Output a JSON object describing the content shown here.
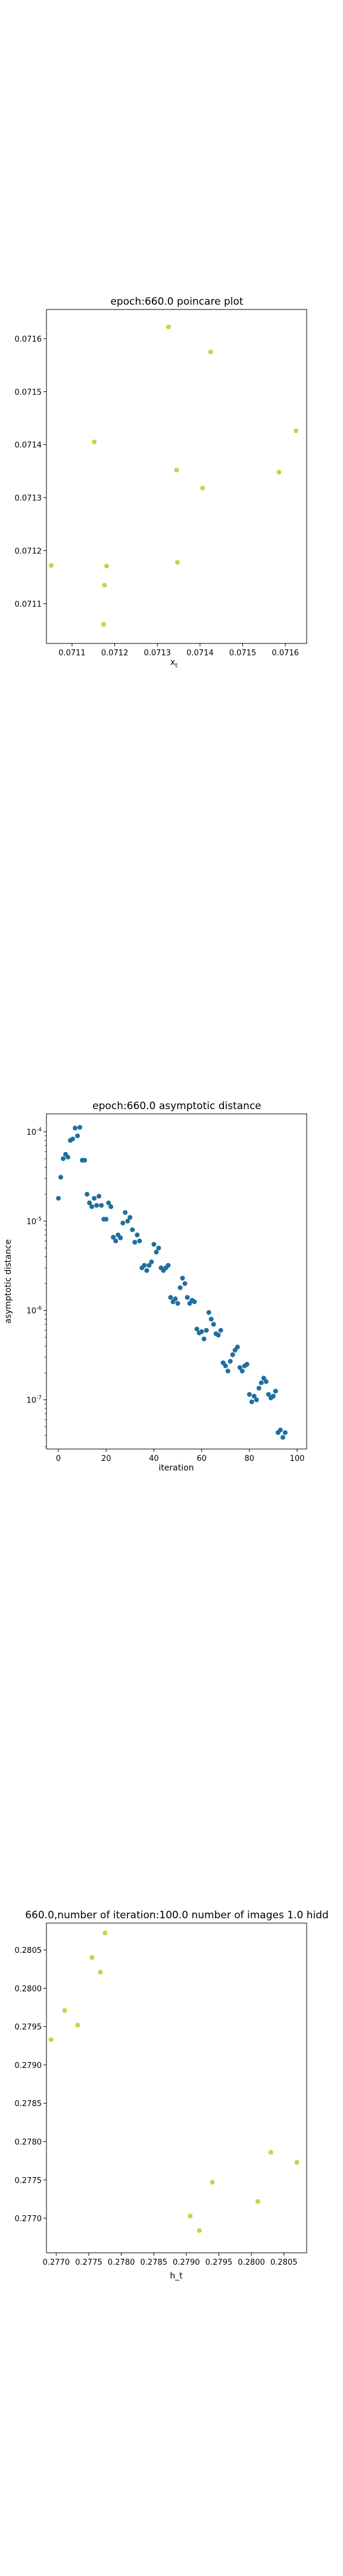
{
  "colors": {
    "yellow": "#c8d24a",
    "blue": "#1f6f9f",
    "axis": "#000000"
  },
  "chart_data": [
    {
      "type": "scatter",
      "title": "epoch:660.0 poincare plot",
      "xlabel": "x_t",
      "ylabel": "",
      "xlim": [
        0.07104,
        0.07165
      ],
      "ylim": [
        0.071025,
        0.071655
      ],
      "xticks": [
        "0.0711",
        "0.0712",
        "0.0713",
        "0.0714",
        "0.0715",
        "0.0716"
      ],
      "yticks": [
        "0.0711",
        "0.0712",
        "0.0713",
        "0.0714",
        "0.0715",
        "0.0716"
      ],
      "grid": false,
      "points": [
        {
          "x": 0.071051,
          "y": 0.071172
        },
        {
          "x": 0.071152,
          "y": 0.071405
        },
        {
          "x": 0.071174,
          "y": 0.071061
        },
        {
          "x": 0.071176,
          "y": 0.071135
        },
        {
          "x": 0.071181,
          "y": 0.071171
        },
        {
          "x": 0.071326,
          "y": 0.071622
        },
        {
          "x": 0.071345,
          "y": 0.071352
        },
        {
          "x": 0.071347,
          "y": 0.071178
        },
        {
          "x": 0.071406,
          "y": 0.071318
        },
        {
          "x": 0.071425,
          "y": 0.071575
        },
        {
          "x": 0.071585,
          "y": 0.071348
        },
        {
          "x": 0.071625,
          "y": 0.071426
        }
      ]
    },
    {
      "type": "scatter",
      "title": "epoch:660.0 asymptotic distance",
      "xlabel": "iteration",
      "ylabel": "asymptotic distance",
      "xlim": [
        -5,
        104
      ],
      "ylog": true,
      "ylim_log10": [
        -7.55,
        -3.8
      ],
      "xticks": [
        "0",
        "20",
        "40",
        "60",
        "80",
        "100"
      ],
      "yticks": [
        "10^-4",
        "10^-5",
        "10^-6",
        "10^-7"
      ],
      "grid": false,
      "points": [
        {
          "x": 0,
          "y": 1.8e-05
        },
        {
          "x": 1,
          "y": 3.1e-05
        },
        {
          "x": 2,
          "y": 5e-05
        },
        {
          "x": 3,
          "y": 5.6e-05
        },
        {
          "x": 4,
          "y": 5.2e-05
        },
        {
          "x": 5,
          "y": 8e-05
        },
        {
          "x": 6,
          "y": 8.3e-05
        },
        {
          "x": 7,
          "y": 0.00011
        },
        {
          "x": 8,
          "y": 9e-05
        },
        {
          "x": 9,
          "y": 0.000112
        },
        {
          "x": 10,
          "y": 4.8e-05
        },
        {
          "x": 11,
          "y": 4.8e-05
        },
        {
          "x": 12,
          "y": 2e-05
        },
        {
          "x": 13,
          "y": 1.6e-05
        },
        {
          "x": 14,
          "y": 1.45e-05
        },
        {
          "x": 15,
          "y": 1.8e-05
        },
        {
          "x": 16,
          "y": 1.5e-05
        },
        {
          "x": 17,
          "y": 1.9e-05
        },
        {
          "x": 18,
          "y": 1.5e-05
        },
        {
          "x": 19,
          "y": 1.05e-05
        },
        {
          "x": 20,
          "y": 1.05e-05
        },
        {
          "x": 21,
          "y": 1.6e-05
        },
        {
          "x": 22,
          "y": 1.45e-05
        },
        {
          "x": 23,
          "y": 6.6e-06
        },
        {
          "x": 24,
          "y": 6e-06
        },
        {
          "x": 25,
          "y": 7e-06
        },
        {
          "x": 26,
          "y": 6.5e-06
        },
        {
          "x": 27,
          "y": 9.5e-06
        },
        {
          "x": 28,
          "y": 1.25e-05
        },
        {
          "x": 29,
          "y": 1e-05
        },
        {
          "x": 30,
          "y": 1.1e-05
        },
        {
          "x": 31,
          "y": 8e-06
        },
        {
          "x": 32,
          "y": 5.8e-06
        },
        {
          "x": 33,
          "y": 7e-06
        },
        {
          "x": 34,
          "y": 6e-06
        },
        {
          "x": 35,
          "y": 3e-06
        },
        {
          "x": 36,
          "y": 3.2e-06
        },
        {
          "x": 37,
          "y": 2.8e-06
        },
        {
          "x": 38,
          "y": 3.2e-06
        },
        {
          "x": 39,
          "y": 3.5e-06
        },
        {
          "x": 40,
          "y": 5.5e-06
        },
        {
          "x": 41,
          "y": 4.5e-06
        },
        {
          "x": 42,
          "y": 5e-06
        },
        {
          "x": 43,
          "y": 3e-06
        },
        {
          "x": 44,
          "y": 2.8e-06
        },
        {
          "x": 45,
          "y": 3e-06
        },
        {
          "x": 46,
          "y": 3.2e-06
        },
        {
          "x": 47,
          "y": 1.4e-06
        },
        {
          "x": 48,
          "y": 1.25e-06
        },
        {
          "x": 49,
          "y": 1.35e-06
        },
        {
          "x": 50,
          "y": 1.2e-06
        },
        {
          "x": 51,
          "y": 1.8e-06
        },
        {
          "x": 52,
          "y": 2.3e-06
        },
        {
          "x": 53,
          "y": 2e-06
        },
        {
          "x": 54,
          "y": 1.4e-06
        },
        {
          "x": 55,
          "y": 1.2e-06
        },
        {
          "x": 56,
          "y": 1.3e-06
        },
        {
          "x": 57,
          "y": 1.25e-06
        },
        {
          "x": 58,
          "y": 6.2e-07
        },
        {
          "x": 59,
          "y": 5.6e-07
        },
        {
          "x": 60,
          "y": 5.8e-07
        },
        {
          "x": 61,
          "y": 4.8e-07
        },
        {
          "x": 62,
          "y": 6e-07
        },
        {
          "x": 63,
          "y": 9.5e-07
        },
        {
          "x": 64,
          "y": 8e-07
        },
        {
          "x": 65,
          "y": 7e-07
        },
        {
          "x": 66,
          "y": 5.5e-07
        },
        {
          "x": 67,
          "y": 5.3e-07
        },
        {
          "x": 68,
          "y": 6e-07
        },
        {
          "x": 69,
          "y": 2.6e-07
        },
        {
          "x": 70,
          "y": 2.4e-07
        },
        {
          "x": 71,
          "y": 2.1e-07
        },
        {
          "x": 72,
          "y": 2.7e-07
        },
        {
          "x": 73,
          "y": 3.2e-07
        },
        {
          "x": 74,
          "y": 3.6e-07
        },
        {
          "x": 75,
          "y": 3.9e-07
        },
        {
          "x": 76,
          "y": 2.3e-07
        },
        {
          "x": 77,
          "y": 2.1e-07
        },
        {
          "x": 78,
          "y": 2.4e-07
        },
        {
          "x": 79,
          "y": 2.5e-07
        },
        {
          "x": 80,
          "y": 1.15e-07
        },
        {
          "x": 81,
          "y": 9.5e-08
        },
        {
          "x": 82,
          "y": 1.1e-07
        },
        {
          "x": 83,
          "y": 1e-07
        },
        {
          "x": 84,
          "y": 1.35e-07
        },
        {
          "x": 85,
          "y": 1.55e-07
        },
        {
          "x": 86,
          "y": 1.75e-07
        },
        {
          "x": 87,
          "y": 1.6e-07
        },
        {
          "x": 88,
          "y": 1.15e-07
        },
        {
          "x": 89,
          "y": 1.05e-07
        },
        {
          "x": 90,
          "y": 1.1e-07
        },
        {
          "x": 91,
          "y": 1.25e-07
        },
        {
          "x": 92,
          "y": 4.3e-08
        },
        {
          "x": 93,
          "y": 4.6e-08
        },
        {
          "x": 94,
          "y": 3.8e-08
        },
        {
          "x": 95,
          "y": 4.3e-08
        }
      ]
    },
    {
      "type": "scatter",
      "title": "660.0,number of iteration:100.0  number of images 1.0 hidd",
      "xlabel": "h_t",
      "ylabel": "",
      "xlim": [
        0.27685,
        0.28085
      ],
      "ylim": [
        0.27655,
        0.28085
      ],
      "xticks": [
        "0.2770",
        "0.2775",
        "0.2780",
        "0.2785",
        "0.2790",
        "0.2795",
        "0.2800",
        "0.2805"
      ],
      "yticks": [
        "0.2770",
        "0.2775",
        "0.2780",
        "0.2785",
        "0.2790",
        "0.2795",
        "0.2800",
        "0.2805"
      ],
      "grid": false,
      "points": [
        {
          "x": 0.27692,
          "y": 0.27933
        },
        {
          "x": 0.27713,
          "y": 0.27971
        },
        {
          "x": 0.27733,
          "y": 0.27952
        },
        {
          "x": 0.27755,
          "y": 0.2804
        },
        {
          "x": 0.27768,
          "y": 0.28021
        },
        {
          "x": 0.27775,
          "y": 0.28072
        },
        {
          "x": 0.27906,
          "y": 0.27703
        },
        {
          "x": 0.2792,
          "y": 0.27684
        },
        {
          "x": 0.2794,
          "y": 0.27747
        },
        {
          "x": 0.2801,
          "y": 0.27722
        },
        {
          "x": 0.2803,
          "y": 0.27786
        },
        {
          "x": 0.2807,
          "y": 0.27773
        }
      ]
    }
  ],
  "charts_text": [
    {
      "title": "epoch:660.0 poincare plot",
      "xlabel_main": "x",
      "xlabel_sub": "t"
    },
    {
      "title": "epoch:660.0 asymptotic distance",
      "xlabel": "iteration",
      "ylabel": "asymptotic distance"
    },
    {
      "title": "660.0,number of iteration:100.0  number of images 1.0 hidd",
      "xlabel": "h_t"
    }
  ]
}
